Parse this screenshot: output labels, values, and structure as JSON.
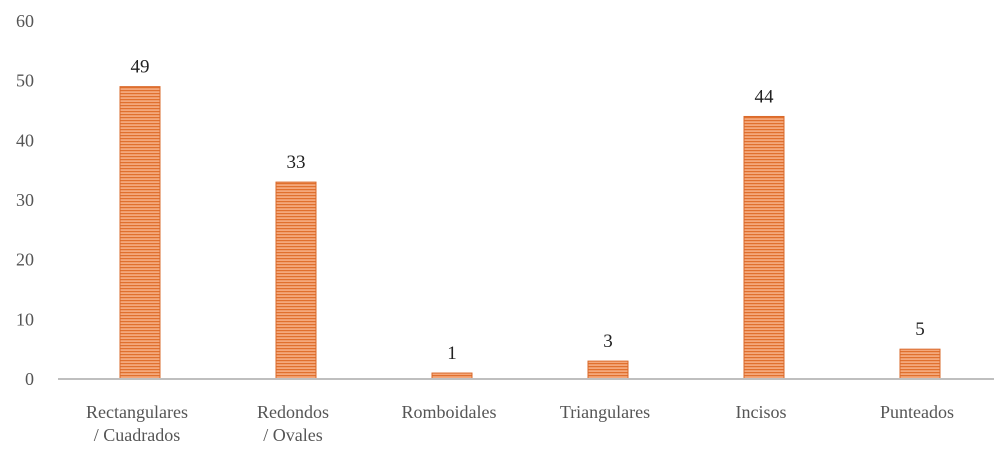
{
  "chart_data": {
    "type": "bar",
    "categories": [
      [
        "Rectangulares",
        "/ Cuadrados"
      ],
      [
        "Redondos",
        "/ Ovales"
      ],
      [
        "Romboidales"
      ],
      [
        "Triangulares"
      ],
      [
        "Incisos"
      ],
      [
        "Punteados"
      ]
    ],
    "values": [
      49,
      33,
      1,
      3,
      44,
      5
    ],
    "y_ticks": [
      0,
      10,
      20,
      30,
      40,
      50,
      60
    ],
    "ylim": [
      0,
      60
    ],
    "grid": false,
    "legend": "none",
    "colors": {
      "bar_fill": "#f4a87c",
      "bar_stripe": "#e0702e",
      "bar_border": "#d9682a",
      "axis": "#bfbfbf"
    }
  }
}
